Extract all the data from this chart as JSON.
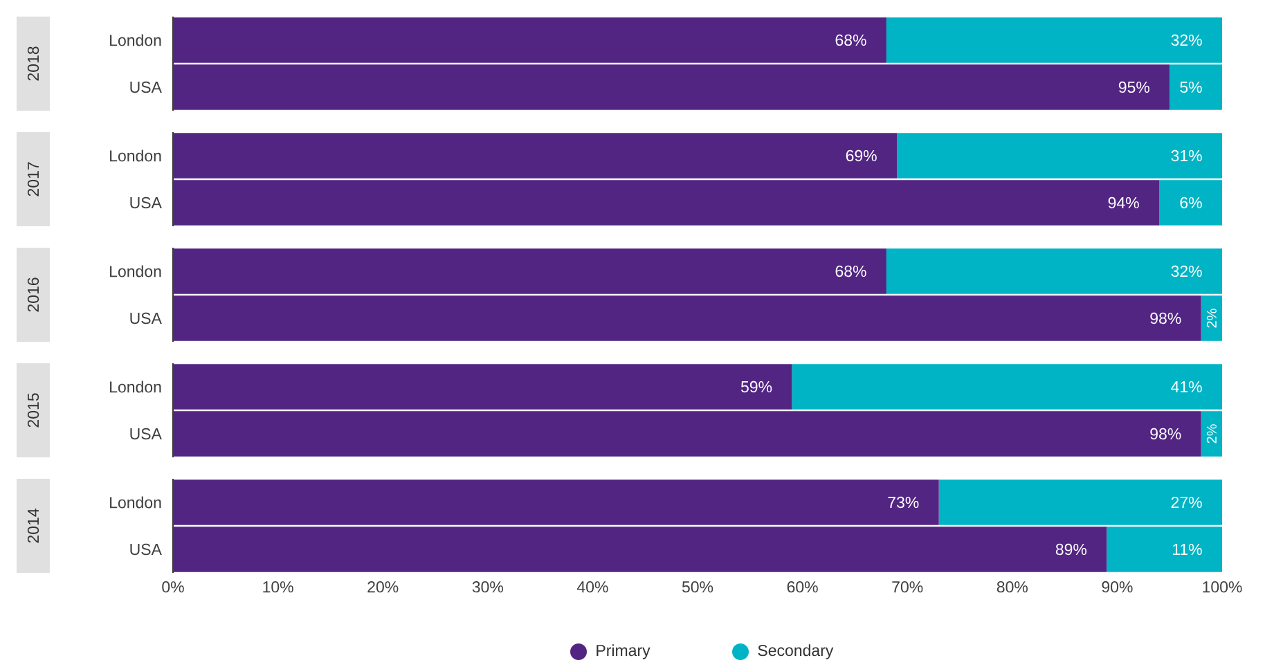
{
  "chart_data": [
    {
      "type": "bar",
      "orientation": "horizontal",
      "stacked": true,
      "ylabel": "2018",
      "categories": [
        "London",
        "USA"
      ],
      "series": [
        {
          "color": "#522583",
          "values": [
            68,
            95
          ],
          "value_labels": [
            "68%",
            "95%"
          ]
        },
        {
          "color": "#00b4c5",
          "values": [
            32,
            5
          ],
          "value_labels": [
            "32%",
            "5%"
          ]
        }
      ],
      "xlim": [
        0,
        100
      ],
      "tick_labels": "y"
    },
    {
      "type": "bar",
      "orientation": "horizontal",
      "stacked": true,
      "ylabel": "2017",
      "categories": [
        "London",
        "USA"
      ],
      "series": [
        {
          "color": "#522583",
          "values": [
            69,
            94
          ],
          "value_labels": [
            "69%",
            "94%"
          ]
        },
        {
          "color": "#00b4c5",
          "values": [
            31,
            6
          ],
          "value_labels": [
            "31%",
            "6%"
          ]
        }
      ],
      "xlim": [
        0,
        100
      ],
      "tick_labels": "y"
    },
    {
      "type": "bar",
      "orientation": "horizontal",
      "stacked": true,
      "ylabel": "2016",
      "categories": [
        "London",
        "USA"
      ],
      "series": [
        {
          "color": "#522583",
          "values": [
            68,
            98
          ],
          "value_labels": [
            "68%",
            "98%"
          ]
        },
        {
          "color": "#00b4c5",
          "values": [
            32,
            2
          ],
          "value_labels": [
            "32%",
            "2%"
          ]
        }
      ],
      "xlim": [
        0,
        100
      ],
      "tick_labels": "y"
    },
    {
      "type": "bar",
      "orientation": "horizontal",
      "stacked": true,
      "ylabel": "2015",
      "categories": [
        "London",
        "USA"
      ],
      "series": [
        {
          "color": "#522583",
          "values": [
            59,
            98
          ],
          "value_labels": [
            "59%",
            "98%"
          ]
        },
        {
          "color": "#00b4c5",
          "values": [
            41,
            2
          ],
          "value_labels": [
            "41%",
            "2%"
          ]
        }
      ],
      "xlim": [
        0,
        100
      ],
      "tick_labels": "y"
    },
    {
      "type": "bar",
      "orientation": "horizontal",
      "stacked": true,
      "ylabel": "2014",
      "categories": [
        "London",
        "USA"
      ],
      "series": [
        {
          "name": "Primary",
          "color": "#522583",
          "values": [
            73,
            89
          ],
          "value_labels": [
            "73%",
            "89%"
          ]
        },
        {
          "name": "Secondary",
          "color": "#00b4c5",
          "values": [
            27,
            11
          ],
          "value_labels": [
            "27%",
            "11%"
          ]
        }
      ],
      "xlim": [
        0,
        100
      ],
      "xticks": [
        {
          "value": 0,
          "label": "0%"
        },
        {
          "value": 10,
          "label": "10%"
        },
        {
          "value": 20,
          "label": "20%"
        },
        {
          "value": 30,
          "label": "30%"
        },
        {
          "value": 40,
          "label": "40%"
        },
        {
          "value": 50,
          "label": "50%"
        },
        {
          "value": 60,
          "label": "60%"
        },
        {
          "value": 70,
          "label": "70%"
        },
        {
          "value": 80,
          "label": "80%"
        },
        {
          "value": 90,
          "label": "90%"
        },
        {
          "value": 100,
          "label": "100%"
        }
      ],
      "legend": "bottom"
    }
  ]
}
